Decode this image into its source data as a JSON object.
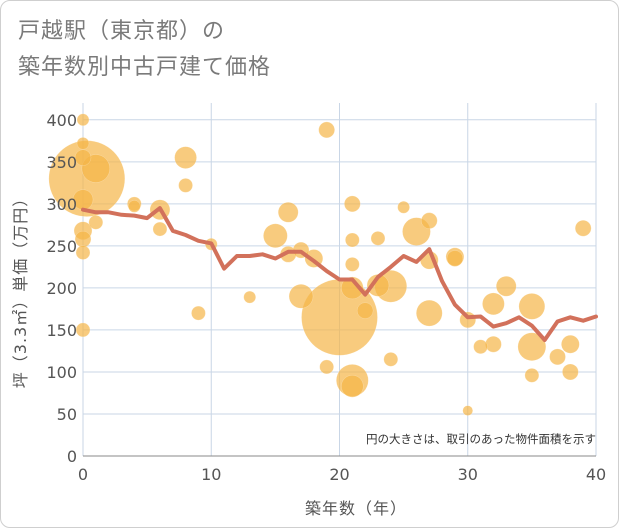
{
  "title_line1": "戸越駅（東京都）の",
  "title_line2": "築年数別中古戸建て価格",
  "chart_data": {
    "type": "scatter",
    "xlabel": "築年数（年）",
    "ylabel": "坪（3.3㎡）単価（万円）",
    "xlim": [
      0,
      40
    ],
    "ylim": [
      0,
      420
    ],
    "xticks": [
      "0",
      "10",
      "20",
      "30",
      "40"
    ],
    "yticks": [
      "0",
      "50",
      "100",
      "150",
      "200",
      "250",
      "300",
      "350",
      "400"
    ],
    "note": "円の大きさは、取引のあった物件面積を示す",
    "grid": true,
    "colors": {
      "bubble": "#f5b547",
      "line": "#d2715b",
      "grid": "#c9d6e6"
    },
    "bubbles": [
      {
        "x": 0,
        "y": 400,
        "r": 6
      },
      {
        "x": 0,
        "y": 372,
        "r": 6
      },
      {
        "x": 0,
        "y": 355,
        "r": 8
      },
      {
        "x": 0.3,
        "y": 330,
        "r": 38
      },
      {
        "x": 1,
        "y": 342,
        "r": 14
      },
      {
        "x": 0,
        "y": 305,
        "r": 10
      },
      {
        "x": 0,
        "y": 268,
        "r": 9
      },
      {
        "x": 0,
        "y": 258,
        "r": 8
      },
      {
        "x": 0,
        "y": 242,
        "r": 7
      },
      {
        "x": 0,
        "y": 150,
        "r": 7
      },
      {
        "x": 1,
        "y": 278,
        "r": 7
      },
      {
        "x": 4,
        "y": 300,
        "r": 7
      },
      {
        "x": 4,
        "y": 297,
        "r": 6
      },
      {
        "x": 6,
        "y": 293,
        "r": 10
      },
      {
        "x": 6,
        "y": 270,
        "r": 7
      },
      {
        "x": 8,
        "y": 355,
        "r": 11
      },
      {
        "x": 8,
        "y": 322,
        "r": 7
      },
      {
        "x": 9,
        "y": 170,
        "r": 7
      },
      {
        "x": 10,
        "y": 252,
        "r": 6
      },
      {
        "x": 13,
        "y": 189,
        "r": 6
      },
      {
        "x": 15,
        "y": 262,
        "r": 12
      },
      {
        "x": 16,
        "y": 290,
        "r": 10
      },
      {
        "x": 16,
        "y": 240,
        "r": 8
      },
      {
        "x": 17,
        "y": 245,
        "r": 8
      },
      {
        "x": 17,
        "y": 190,
        "r": 12
      },
      {
        "x": 18,
        "y": 235,
        "r": 9
      },
      {
        "x": 19,
        "y": 388,
        "r": 8
      },
      {
        "x": 19,
        "y": 106,
        "r": 7
      },
      {
        "x": 20,
        "y": 165,
        "r": 38
      },
      {
        "x": 21,
        "y": 300,
        "r": 8
      },
      {
        "x": 21,
        "y": 257,
        "r": 7
      },
      {
        "x": 21,
        "y": 228,
        "r": 7
      },
      {
        "x": 21,
        "y": 200,
        "r": 11
      },
      {
        "x": 21,
        "y": 90,
        "r": 16
      },
      {
        "x": 21,
        "y": 83,
        "r": 11
      },
      {
        "x": 22,
        "y": 173,
        "r": 8
      },
      {
        "x": 23,
        "y": 259,
        "r": 7
      },
      {
        "x": 23,
        "y": 203,
        "r": 11
      },
      {
        "x": 24,
        "y": 202,
        "r": 16
      },
      {
        "x": 24,
        "y": 115,
        "r": 7
      },
      {
        "x": 25,
        "y": 296,
        "r": 6
      },
      {
        "x": 26,
        "y": 267,
        "r": 14
      },
      {
        "x": 27,
        "y": 280,
        "r": 8
      },
      {
        "x": 27,
        "y": 233,
        "r": 9
      },
      {
        "x": 27,
        "y": 170,
        "r": 13
      },
      {
        "x": 29,
        "y": 237,
        "r": 9
      },
      {
        "x": 29,
        "y": 235,
        "r": 8
      },
      {
        "x": 30,
        "y": 162,
        "r": 8
      },
      {
        "x": 30,
        "y": 54,
        "r": 5
      },
      {
        "x": 31,
        "y": 130,
        "r": 7
      },
      {
        "x": 32,
        "y": 181,
        "r": 11
      },
      {
        "x": 32,
        "y": 133,
        "r": 8
      },
      {
        "x": 33,
        "y": 202,
        "r": 10
      },
      {
        "x": 35,
        "y": 178,
        "r": 13
      },
      {
        "x": 35,
        "y": 130,
        "r": 14
      },
      {
        "x": 35,
        "y": 96,
        "r": 7
      },
      {
        "x": 37,
        "y": 118,
        "r": 8
      },
      {
        "x": 38,
        "y": 133,
        "r": 9
      },
      {
        "x": 38,
        "y": 100,
        "r": 8
      },
      {
        "x": 39,
        "y": 271,
        "r": 8
      }
    ],
    "trend": {
      "x": [
        0,
        1,
        2,
        3,
        4,
        5,
        6,
        7,
        8,
        9,
        10,
        11,
        12,
        13,
        14,
        15,
        16,
        17,
        18,
        19,
        20,
        21,
        22,
        23,
        24,
        25,
        26,
        27,
        28,
        29,
        30,
        31,
        32,
        33,
        34,
        35,
        36,
        37,
        38,
        39,
        40
      ],
      "y": [
        293,
        290,
        290,
        287,
        286,
        283,
        295,
        268,
        263,
        256,
        253,
        223,
        238,
        238,
        240,
        235,
        243,
        243,
        232,
        220,
        210,
        210,
        192,
        213,
        225,
        238,
        231,
        246,
        208,
        180,
        165,
        166,
        154,
        158,
        165,
        155,
        138,
        160,
        165,
        161,
        166
      ]
    }
  }
}
